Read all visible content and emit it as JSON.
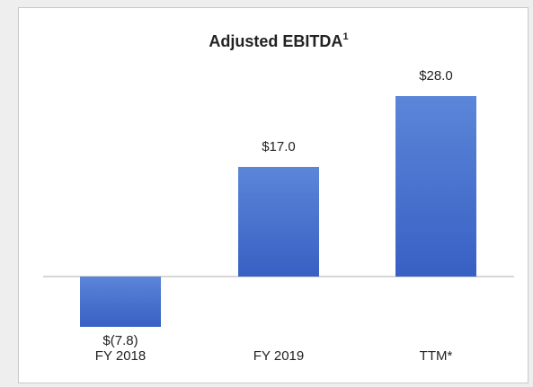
{
  "chart_data": {
    "type": "bar",
    "title": "Adjusted EBITDA",
    "title_superscript": "1",
    "categories": [
      "FY 2018",
      "FY 2019",
      "TTM*"
    ],
    "values": [
      -7.8,
      17.0,
      28.0
    ],
    "value_labels": [
      "$(7.8)",
      "$17.0",
      "$28.0"
    ],
    "color": "#4a74d0"
  }
}
